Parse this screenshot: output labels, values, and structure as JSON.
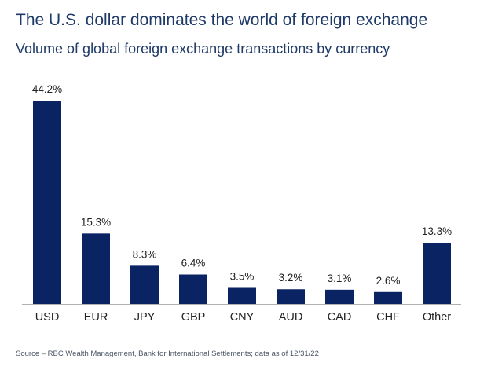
{
  "header": {
    "title": "The U.S. dollar dominates the world of foreign exchange",
    "subtitle": "Volume of global foreign exchange transactions by currency"
  },
  "footer": {
    "source": "Source – RBC Wealth Management, Bank for International Settlements; data as of 12/31/22"
  },
  "colors": {
    "bar": "#0a2463",
    "axis": "#b0b0b0",
    "label": "#222222"
  },
  "chart_data": {
    "type": "bar",
    "categories": [
      "USD",
      "EUR",
      "JPY",
      "GBP",
      "CNY",
      "AUD",
      "CAD",
      "CHF",
      "Other"
    ],
    "values": [
      44.2,
      15.3,
      8.3,
      6.4,
      3.5,
      3.2,
      3.1,
      2.6,
      13.3
    ],
    "value_labels": [
      "44.2%",
      "15.3%",
      "8.3%",
      "6.4%",
      "3.5%",
      "3.2%",
      "3.1%",
      "2.6%",
      "13.3%"
    ],
    "ylim": [
      0,
      44.2
    ],
    "grid": false,
    "legend": "none"
  }
}
